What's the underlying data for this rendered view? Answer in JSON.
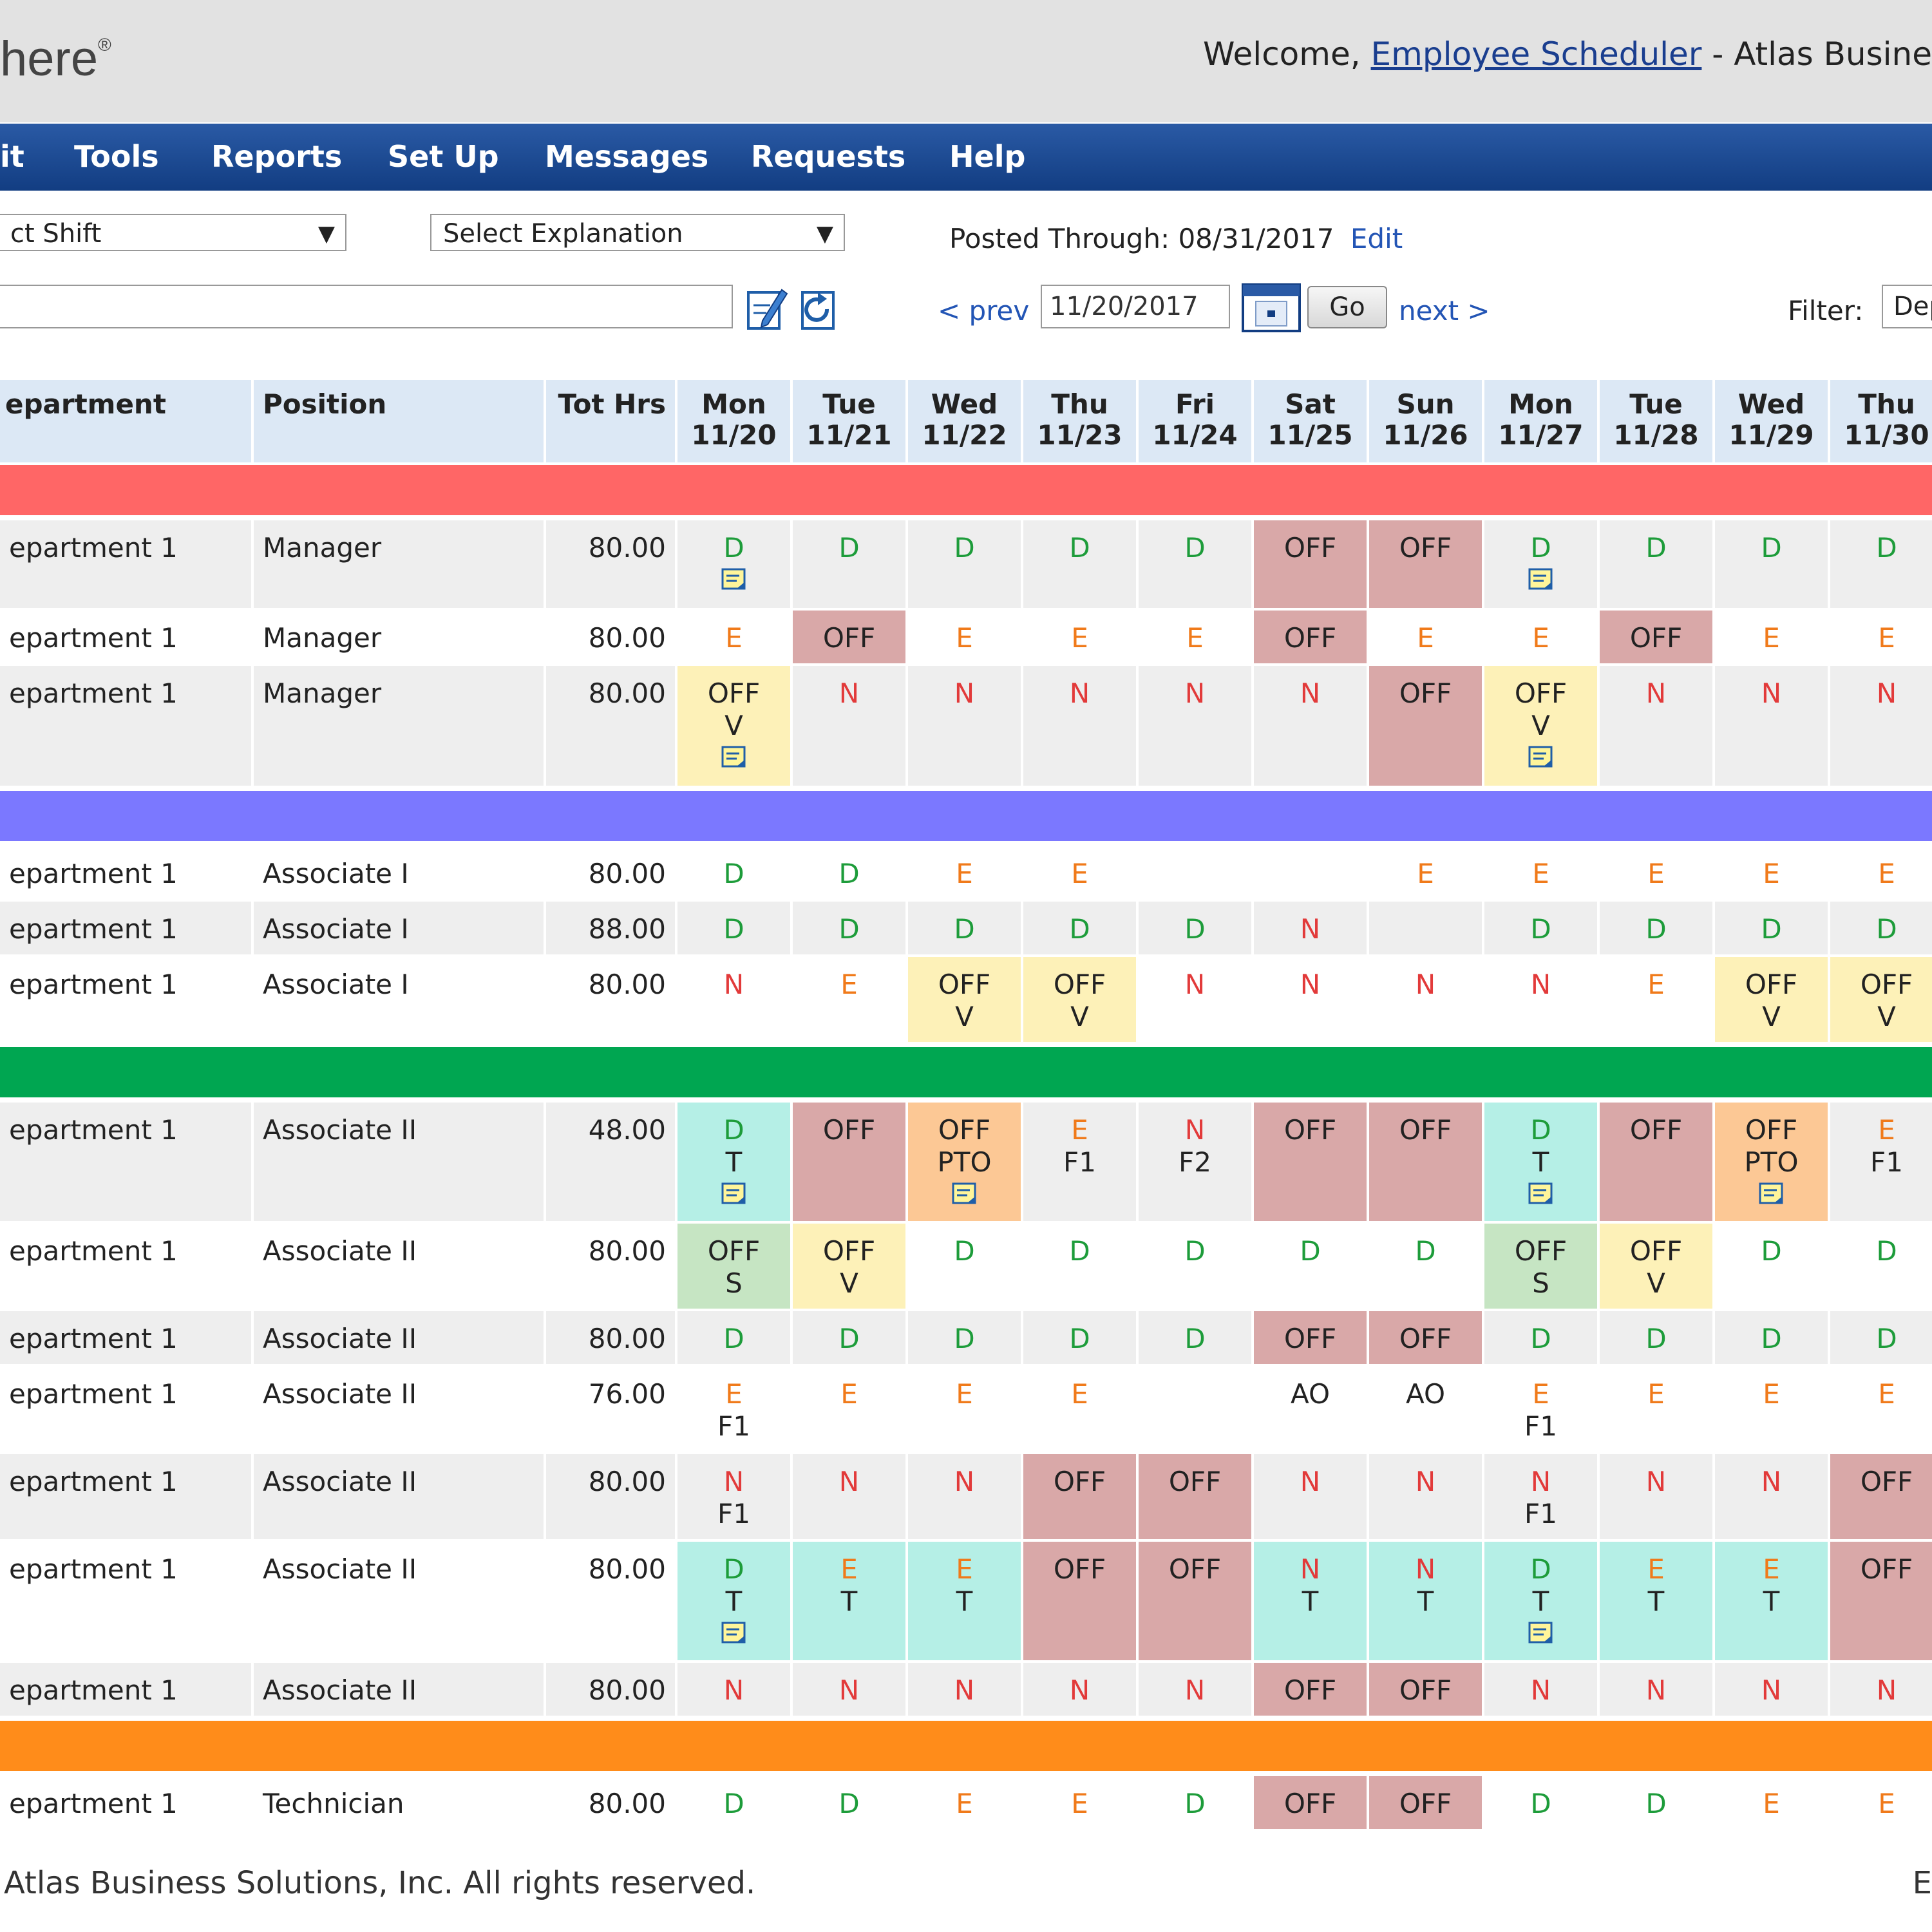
{
  "header": {
    "logo_text": "here",
    "logo_reg": "®",
    "welcome_prefix": "Welcome, ",
    "user_link": "Employee Scheduler",
    "welcome_suffix": " - Atlas Busine"
  },
  "nav": [
    "it",
    "Tools",
    "Reports",
    "Set Up",
    "Messages",
    "Requests",
    "Help"
  ],
  "toolbar": {
    "shift_select": "ct Shift",
    "explanation_select": "Select Explanation",
    "posted_label": "Posted Through:",
    "posted_date": "08/31/2017",
    "edit_link": "Edit",
    "prev_link": "< prev",
    "date_value": "11/20/2017",
    "go_button": "Go",
    "next_link": "next >",
    "filter_label": "Filter:",
    "filter_value": "Dep"
  },
  "columns": {
    "department": "epartment",
    "position": "Position",
    "tot_hrs": "Tot Hrs",
    "days": [
      {
        "dow": "Mon",
        "date": "11/20"
      },
      {
        "dow": "Tue",
        "date": "11/21"
      },
      {
        "dow": "Wed",
        "date": "11/22"
      },
      {
        "dow": "Thu",
        "date": "11/23"
      },
      {
        "dow": "Fri",
        "date": "11/24"
      },
      {
        "dow": "Sat",
        "date": "11/25"
      },
      {
        "dow": "Sun",
        "date": "11/26"
      },
      {
        "dow": "Mon",
        "date": "11/27"
      },
      {
        "dow": "Tue",
        "date": "11/28"
      },
      {
        "dow": "Wed",
        "date": "11/29"
      },
      {
        "dow": "Thu",
        "date": "11/30"
      }
    ]
  },
  "colors": {
    "band_manager": "#ff6666",
    "band_associate_1": "#7b78ff",
    "band_associate_2": "#00a651",
    "band_technician": "#ff8c1a",
    "off_bg": "#d9a8a8",
    "vacation_bg": "#fdf1b8",
    "training_bg": "#b5efe6",
    "pto_bg": "#fcc895",
    "sick_bg": "#c6e5c3"
  },
  "groups": [
    {
      "band": "#ff6666",
      "rows": [
        {
          "dept": "epartment 1",
          "pos": "Manager",
          "hrs": "80.00",
          "h": 140,
          "cells": [
            [
              "D",
              "n"
            ],
            [
              "D"
            ],
            [
              "D"
            ],
            [
              "D"
            ],
            [
              "D"
            ],
            [
              "OFF"
            ],
            [
              "OFF"
            ],
            [
              "D",
              "n"
            ],
            [
              "D"
            ],
            [
              "D"
            ],
            [
              "D"
            ]
          ]
        },
        {
          "dept": "epartment 1",
          "pos": "Manager",
          "hrs": "80.00",
          "h": 86,
          "cells": [
            [
              "E"
            ],
            [
              "OFF"
            ],
            [
              "E"
            ],
            [
              "E"
            ],
            [
              "E"
            ],
            [
              "OFF"
            ],
            [
              "E"
            ],
            [
              "E"
            ],
            [
              "OFF"
            ],
            [
              "E"
            ],
            [
              "E"
            ]
          ]
        },
        {
          "dept": "epartment 1",
          "pos": "Manager",
          "hrs": "80.00",
          "h": 190,
          "cells": [
            [
              "OFF",
              "V",
              "n"
            ],
            [
              "N"
            ],
            [
              "N"
            ],
            [
              "N"
            ],
            [
              "N"
            ],
            [
              "N"
            ],
            [
              "OFF"
            ],
            [
              "OFF",
              "V",
              "n"
            ],
            [
              "N"
            ],
            [
              "N"
            ],
            [
              "N"
            ]
          ]
        }
      ]
    },
    {
      "band": "#7b78ff",
      "rows": [
        {
          "dept": "epartment 1",
          "pos": "Associate I",
          "hrs": "80.00",
          "h": 86,
          "cells": [
            [
              "D"
            ],
            [
              "D"
            ],
            [
              "E"
            ],
            [
              "E"
            ],
            [],
            [],
            [
              "E"
            ],
            [
              "E"
            ],
            [
              "E"
            ],
            [
              "E"
            ],
            [
              "E"
            ]
          ]
        },
        {
          "dept": "epartment 1",
          "pos": "Associate I",
          "hrs": "88.00",
          "h": 86,
          "cells": [
            [
              "D"
            ],
            [
              "D"
            ],
            [
              "D"
            ],
            [
              "D"
            ],
            [
              "D"
            ],
            [
              "N"
            ],
            [],
            [
              "D"
            ],
            [
              "D"
            ],
            [
              "D"
            ],
            [
              "D"
            ]
          ]
        },
        {
          "dept": "epartment 1",
          "pos": "Associate I",
          "hrs": "80.00",
          "h": 136,
          "cells": [
            [
              "N"
            ],
            [
              "E"
            ],
            [
              "OFF",
              "V"
            ],
            [
              "OFF",
              "V"
            ],
            [
              "N"
            ],
            [
              "N"
            ],
            [
              "N"
            ],
            [
              "N"
            ],
            [
              "E"
            ],
            [
              "OFF",
              "V"
            ],
            [
              "OFF",
              "V"
            ]
          ]
        }
      ]
    },
    {
      "band": "#00a651",
      "rows": [
        {
          "dept": "epartment 1",
          "pos": "Associate II",
          "hrs": "48.00",
          "h": 188,
          "cells": [
            [
              "D",
              "T",
              "n"
            ],
            [
              "OFF"
            ],
            [
              "OFF",
              "PTO",
              "n"
            ],
            [
              "E",
              "F1"
            ],
            [
              "N",
              "F2"
            ],
            [
              "OFF"
            ],
            [
              "OFF"
            ],
            [
              "D",
              "T",
              "n"
            ],
            [
              "OFF"
            ],
            [
              "OFF",
              "PTO",
              "n"
            ],
            [
              "E",
              "F1"
            ]
          ]
        },
        {
          "dept": "epartment 1",
          "pos": "Associate II",
          "hrs": "80.00",
          "h": 136,
          "cells": [
            [
              "OFF",
              "S"
            ],
            [
              "OFF",
              "V"
            ],
            [
              "D"
            ],
            [
              "D"
            ],
            [
              "D"
            ],
            [
              "D"
            ],
            [
              "D"
            ],
            [
              "OFF",
              "S"
            ],
            [
              "OFF",
              "V"
            ],
            [
              "D"
            ],
            [
              "D"
            ]
          ]
        },
        {
          "dept": "epartment 1",
          "pos": "Associate II",
          "hrs": "80.00",
          "h": 86,
          "cells": [
            [
              "D"
            ],
            [
              "D"
            ],
            [
              "D"
            ],
            [
              "D"
            ],
            [
              "D"
            ],
            [
              "OFF"
            ],
            [
              "OFF"
            ],
            [
              "D"
            ],
            [
              "D"
            ],
            [
              "D"
            ],
            [
              "D"
            ]
          ]
        },
        {
          "dept": "epartment 1",
          "pos": "Associate II",
          "hrs": "76.00",
          "h": 136,
          "cells": [
            [
              "E",
              "F1"
            ],
            [
              "E"
            ],
            [
              "E"
            ],
            [
              "E"
            ],
            [],
            [
              "AO"
            ],
            [
              "AO"
            ],
            [
              "E",
              "F1"
            ],
            [
              "E"
            ],
            [
              "E"
            ],
            [
              "E"
            ]
          ]
        },
        {
          "dept": "epartment 1",
          "pos": "Associate II",
          "hrs": "80.00",
          "h": 136,
          "cells": [
            [
              "N",
              "F1"
            ],
            [
              "N"
            ],
            [
              "N"
            ],
            [
              "OFF"
            ],
            [
              "OFF"
            ],
            [
              "N"
            ],
            [
              "N"
            ],
            [
              "N",
              "F1"
            ],
            [
              "N"
            ],
            [
              "N"
            ],
            [
              "OFF"
            ]
          ]
        },
        {
          "dept": "epartment 1",
          "pos": "Associate II",
          "hrs": "80.00",
          "h": 188,
          "cells": [
            [
              "D",
              "T",
              "n"
            ],
            [
              "E",
              "T"
            ],
            [
              "E",
              "T"
            ],
            [
              "OFF"
            ],
            [
              "OFF"
            ],
            [
              "N",
              "T"
            ],
            [
              "N",
              "T"
            ],
            [
              "D",
              "T",
              "n"
            ],
            [
              "E",
              "T"
            ],
            [
              "E",
              "T"
            ],
            [
              "OFF"
            ]
          ]
        },
        {
          "dept": "epartment 1",
          "pos": "Associate II",
          "hrs": "80.00",
          "h": 86,
          "cells": [
            [
              "N"
            ],
            [
              "N"
            ],
            [
              "N"
            ],
            [
              "N"
            ],
            [
              "N"
            ],
            [
              "OFF"
            ],
            [
              "OFF"
            ],
            [
              "N"
            ],
            [
              "N"
            ],
            [
              "N"
            ],
            [
              "N"
            ]
          ]
        }
      ]
    },
    {
      "band": "#ff8c1a",
      "rows": [
        {
          "dept": "epartment 1",
          "pos": "Technician",
          "hrs": "80.00",
          "h": 86,
          "cells": [
            [
              "D"
            ],
            [
              "D"
            ],
            [
              "E"
            ],
            [
              "E"
            ],
            [
              "D"
            ],
            [
              "OFF"
            ],
            [
              "OFF"
            ],
            [
              "D"
            ],
            [
              "D"
            ],
            [
              "E"
            ],
            [
              "E"
            ]
          ]
        }
      ]
    }
  ],
  "footer": {
    "copyright": "Atlas Business Solutions, Inc. All rights reserved.",
    "right": "E"
  }
}
